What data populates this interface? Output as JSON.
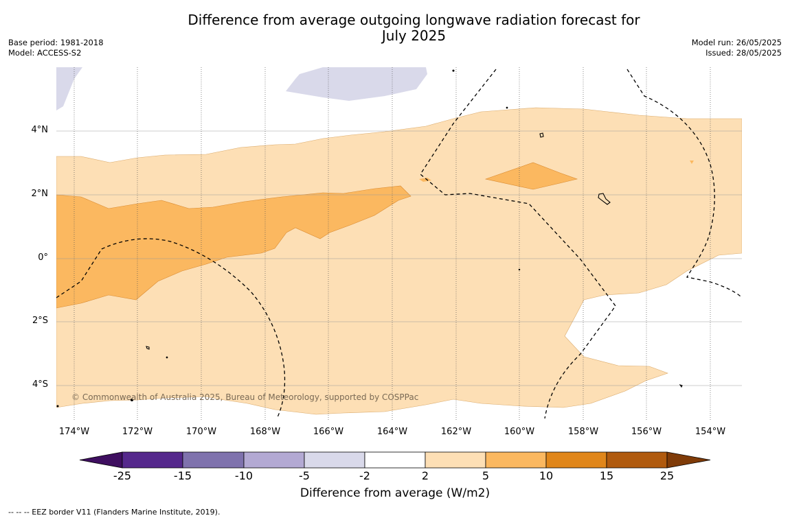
{
  "title": {
    "line1": "Difference from average outgoing longwave radiation forecast for",
    "line2": "July 2025"
  },
  "meta_left": {
    "base_period": "Base period: 1981-2018",
    "model": "Model: ACCESS-S2"
  },
  "meta_right": {
    "model_run": "Model run: 26/05/2025",
    "issued": "Issued: 28/05/2025"
  },
  "map": {
    "lat_labels": [
      "4°N",
      "2°N",
      "0°",
      "2°S",
      "4°S"
    ],
    "lon_labels": [
      "174°W",
      "172°W",
      "170°W",
      "168°W",
      "166°W",
      "164°W",
      "162°W",
      "160°W",
      "158°W",
      "156°W",
      "154°W"
    ],
    "copyright": "© Commonwealth of Australia 2025, Bureau of Meteorology, supported by COSPPac",
    "fill_colors": {
      "2_to_5": "#fddfb5",
      "5_to_10": "#fbb860",
      "-5_to_-2": "#d9d9ea",
      "-2_to_2": "#ffffff"
    }
  },
  "colorbar": {
    "ticks": [
      "-25",
      "-15",
      "-10",
      "-5",
      "-2",
      "2",
      "5",
      "10",
      "15",
      "25"
    ],
    "colors": [
      "#3f0f60",
      "#55288c",
      "#7f72ad",
      "#b3a9d3",
      "#d9d9ea",
      "#ffffff",
      "#fddfb5",
      "#fbb860",
      "#e0861a",
      "#b05a0e",
      "#7f3b08"
    ],
    "title": "Difference from average (W/m2)"
  },
  "footnote": "-- -- -- EEZ border V11 (Flanders Marine Institute, 2019)."
}
